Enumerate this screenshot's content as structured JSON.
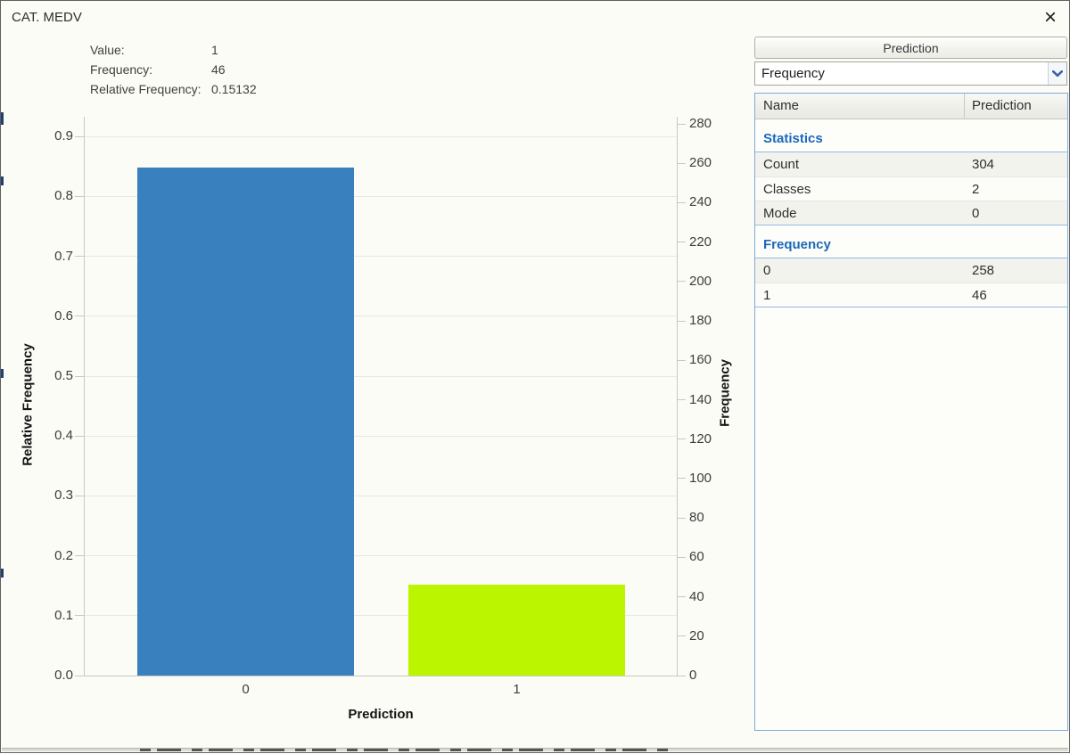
{
  "window": {
    "title": "CAT. MEDV",
    "close_glyph": "×"
  },
  "tooltip": {
    "rows": [
      {
        "label": "Value:",
        "value": "1"
      },
      {
        "label": "Frequency:",
        "value": "46"
      },
      {
        "label": "Relative Frequency:",
        "value": "0.15132"
      }
    ]
  },
  "chart_data": {
    "type": "bar",
    "title": "CAT. MEDV",
    "xlabel": "Prediction",
    "ylabel_left": "Relative Frequency",
    "ylabel_right": "Frequency",
    "categories": [
      "0",
      "1"
    ],
    "total_count": 304,
    "series": [
      {
        "name": "Frequency",
        "values": [
          258,
          46
        ]
      },
      {
        "name": "Relative Frequency",
        "values": [
          0.84868,
          0.15132
        ]
      }
    ],
    "bar_colors": [
      "#3880BE",
      "#BBF500"
    ],
    "left_axis": {
      "min": 0.0,
      "max": 0.933,
      "ticks": [
        0.0,
        0.1,
        0.2,
        0.3,
        0.4,
        0.5,
        0.6,
        0.7,
        0.8,
        0.9
      ]
    },
    "right_axis": {
      "min": 0,
      "max": 284,
      "ticks": [
        0,
        20,
        40,
        60,
        80,
        100,
        120,
        140,
        160,
        180,
        200,
        220,
        240,
        260,
        280
      ]
    },
    "grid": true,
    "legend": false
  },
  "panel": {
    "header_button": "Prediction",
    "dropdown": {
      "value": "Frequency"
    },
    "table": {
      "columns": [
        "Name",
        "Prediction"
      ],
      "sections": [
        {
          "title": "Statistics",
          "rows": [
            {
              "name": "Count",
              "value": "304"
            },
            {
              "name": "Classes",
              "value": "2"
            },
            {
              "name": "Mode",
              "value": "0"
            }
          ]
        },
        {
          "title": "Frequency",
          "rows": [
            {
              "name": "0",
              "value": "258"
            },
            {
              "name": "1",
              "value": "46"
            }
          ]
        }
      ]
    }
  }
}
